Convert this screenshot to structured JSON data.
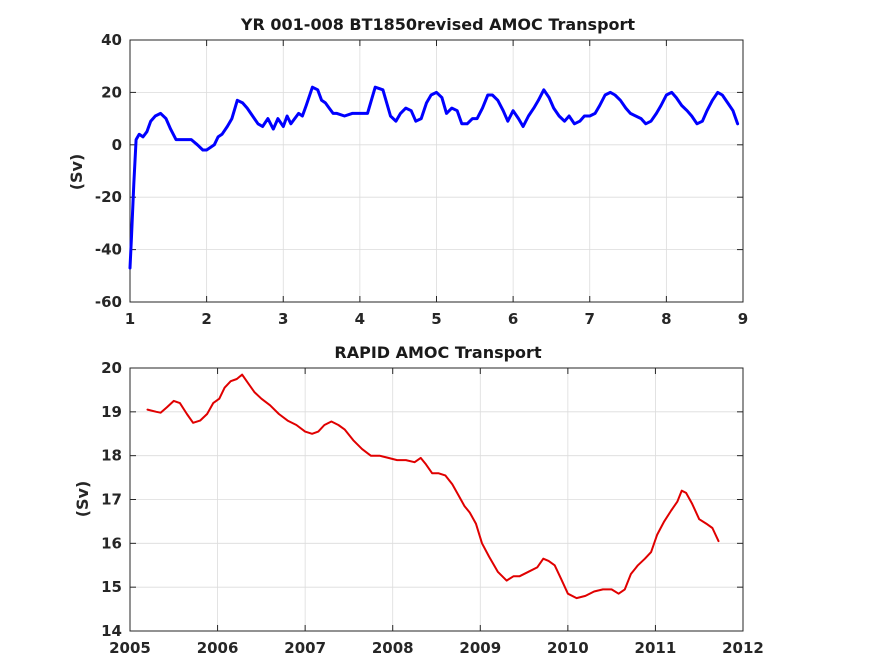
{
  "chart_data": [
    {
      "type": "line",
      "title": "YR 001-008 BT1850revised AMOC Transport",
      "xlabel": "",
      "ylabel": "(Sv)",
      "xlim": [
        1,
        9
      ],
      "ylim": [
        -60,
        40
      ],
      "xticks": [
        "1",
        "2",
        "3",
        "4",
        "5",
        "6",
        "7",
        "8",
        "9"
      ],
      "yticks": [
        "40",
        "20",
        "0",
        "-20",
        "-40",
        "-60"
      ],
      "grid": true,
      "colors": {
        "line": "#0000ff"
      },
      "series": [
        {
          "x": [
            1.0,
            1.02,
            1.05,
            1.08,
            1.12,
            1.17,
            1.22,
            1.27,
            1.33,
            1.4,
            1.47,
            1.53,
            1.6,
            1.67,
            1.73,
            1.8,
            1.88,
            1.95,
            2.0,
            2.05,
            2.1,
            2.15,
            2.2,
            2.27,
            2.33,
            2.4,
            2.47,
            2.53,
            2.6,
            2.67,
            2.73,
            2.8,
            2.87,
            2.93,
            3.0,
            3.05,
            3.1,
            3.15,
            3.2,
            3.25,
            3.3,
            3.38,
            3.45,
            3.5,
            3.55,
            3.6,
            3.65,
            3.7,
            3.8,
            3.9,
            4.0,
            4.1,
            4.2,
            4.3,
            4.4,
            4.47,
            4.53,
            4.6,
            4.67,
            4.73,
            4.8,
            4.87,
            4.93,
            5.0,
            5.07,
            5.13,
            5.2,
            5.27,
            5.33,
            5.4,
            5.47,
            5.53,
            5.6,
            5.67,
            5.73,
            5.8,
            5.87,
            5.93,
            6.0,
            6.07,
            6.13,
            6.2,
            6.27,
            6.33,
            6.4,
            6.47,
            6.53,
            6.6,
            6.67,
            6.73,
            6.8,
            6.87,
            6.93,
            7.0,
            7.07,
            7.13,
            7.2,
            7.27,
            7.33,
            7.4,
            7.47,
            7.53,
            7.6,
            7.67,
            7.73,
            7.8,
            7.87,
            7.93,
            8.0,
            8.07,
            8.13,
            8.2,
            8.27,
            8.33,
            8.4,
            8.47,
            8.53,
            8.6,
            8.67,
            8.73,
            8.8,
            8.87,
            8.93
          ],
          "y": [
            -47,
            -35,
            -15,
            2,
            4,
            3,
            5,
            9,
            11,
            12,
            10,
            6,
            2,
            2,
            2,
            2,
            0,
            -2,
            -2,
            -1,
            0,
            3,
            4,
            7,
            10,
            17,
            16,
            14,
            11,
            8,
            7,
            10,
            6,
            10,
            7,
            11,
            8,
            10,
            12,
            11,
            15,
            22,
            21,
            17,
            16,
            14,
            12,
            12,
            11,
            12,
            12,
            12,
            22,
            21,
            11,
            9,
            12,
            14,
            13,
            9,
            10,
            16,
            19,
            20,
            18,
            12,
            14,
            13,
            8,
            8,
            10,
            10,
            14,
            19,
            19,
            17,
            13,
            9,
            13,
            10,
            7,
            11,
            14,
            17,
            21,
            18,
            14,
            11,
            9,
            11,
            8,
            9,
            11,
            11,
            12,
            15,
            19,
            20,
            19,
            17,
            14,
            12,
            11,
            10,
            8,
            9,
            12,
            15,
            19,
            20,
            18,
            15,
            13,
            11,
            8,
            9,
            13,
            17,
            20,
            19,
            16,
            13,
            8
          ]
        }
      ]
    },
    {
      "type": "line",
      "title": "RAPID AMOC Transport",
      "xlabel": "",
      "ylabel": "(Sv)",
      "xlim": [
        2005,
        2012
      ],
      "ylim": [
        14,
        20
      ],
      "xticks": [
        "2005",
        "2006",
        "2007",
        "2008",
        "2009",
        "2010",
        "2011",
        "2012"
      ],
      "yticks": [
        "20",
        "19",
        "18",
        "17",
        "16",
        "15",
        "14"
      ],
      "grid": true,
      "colors": {
        "line": "#e00000"
      },
      "series": [
        {
          "x": [
            2005.2,
            2005.3,
            2005.35,
            2005.42,
            2005.5,
            2005.57,
            2005.65,
            2005.72,
            2005.8,
            2005.88,
            2005.95,
            2006.02,
            2006.08,
            2006.15,
            2006.22,
            2006.28,
            2006.35,
            2006.42,
            2006.5,
            2006.6,
            2006.7,
            2006.8,
            2006.9,
            2007.0,
            2007.08,
            2007.15,
            2007.22,
            2007.3,
            2007.38,
            2007.45,
            2007.55,
            2007.65,
            2007.75,
            2007.85,
            2007.95,
            2008.05,
            2008.15,
            2008.25,
            2008.32,
            2008.38,
            2008.45,
            2008.52,
            2008.6,
            2008.68,
            2008.75,
            2008.82,
            2008.88,
            2008.95,
            2009.02,
            2009.1,
            2009.2,
            2009.3,
            2009.38,
            2009.45,
            2009.55,
            2009.65,
            2009.72,
            2009.78,
            2009.85,
            2009.92,
            2010.0,
            2010.1,
            2010.2,
            2010.3,
            2010.4,
            2010.5,
            2010.58,
            2010.65,
            2010.72,
            2010.8,
            2010.88,
            2010.95,
            2011.02,
            2011.1,
            2011.18,
            2011.25,
            2011.3,
            2011.35,
            2011.42,
            2011.5,
            2011.58,
            2011.65,
            2011.72
          ],
          "y": [
            19.05,
            19.0,
            18.98,
            19.1,
            19.25,
            19.2,
            18.95,
            18.75,
            18.8,
            18.95,
            19.2,
            19.3,
            19.55,
            19.7,
            19.75,
            19.85,
            19.65,
            19.45,
            19.3,
            19.15,
            18.95,
            18.8,
            18.7,
            18.55,
            18.5,
            18.55,
            18.7,
            18.78,
            18.7,
            18.6,
            18.35,
            18.15,
            18.0,
            18.0,
            17.95,
            17.9,
            17.9,
            17.85,
            17.95,
            17.8,
            17.6,
            17.6,
            17.55,
            17.35,
            17.1,
            16.85,
            16.7,
            16.45,
            16.0,
            15.7,
            15.35,
            15.15,
            15.25,
            15.25,
            15.35,
            15.45,
            15.65,
            15.6,
            15.5,
            15.2,
            14.85,
            14.75,
            14.8,
            14.9,
            14.95,
            14.95,
            14.85,
            14.95,
            15.3,
            15.5,
            15.65,
            15.8,
            16.2,
            16.5,
            16.75,
            16.95,
            17.2,
            17.15,
            16.9,
            16.55,
            16.45,
            16.35,
            16.05
          ]
        }
      ]
    }
  ]
}
